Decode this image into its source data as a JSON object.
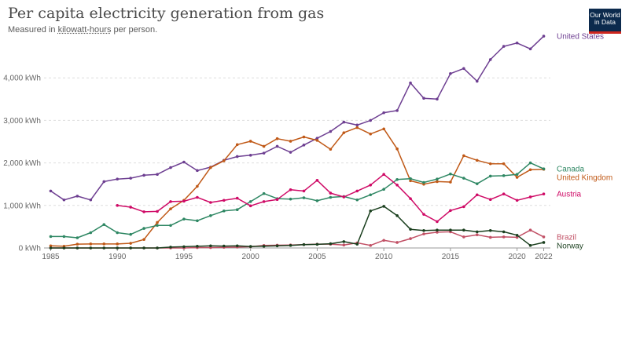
{
  "header": {
    "title": "Per capita electricity generation from gas",
    "subtitle_prefix": "Measured in ",
    "subtitle_link": "kilowatt-hours",
    "subtitle_suffix": " per person."
  },
  "logo": {
    "line1": "Our World",
    "line2": "in Data"
  },
  "chart_data": {
    "type": "line",
    "title": "Per capita electricity generation from gas",
    "ylabel": "",
    "xlim": [
      1984.5,
      2022.5
    ],
    "ylim": [
      0,
      5000
    ],
    "grid": true,
    "legend": "right (labels at line ends)",
    "x_ticks": [
      {
        "value": 1985,
        "label": "1985"
      },
      {
        "value": 1990,
        "label": "1990"
      },
      {
        "value": 1995,
        "label": "1995"
      },
      {
        "value": 2000,
        "label": "2000"
      },
      {
        "value": 2005,
        "label": "2005"
      },
      {
        "value": 2010,
        "label": "2010"
      },
      {
        "value": 2015,
        "label": "2015"
      },
      {
        "value": 2020,
        "label": "2020"
      },
      {
        "value": 2022,
        "label": "2022"
      }
    ],
    "y_ticks": [
      {
        "value": 0,
        "label": "0 kWh"
      },
      {
        "value": 1000,
        "label": "1,000 kWh"
      },
      {
        "value": 2000,
        "label": "2,000 kWh"
      },
      {
        "value": 3000,
        "label": "3,000 kWh"
      },
      {
        "value": 4000,
        "label": "4,000 kWh"
      }
    ],
    "series": [
      {
        "name": "United States",
        "color": "#6d3e91",
        "x": [
          1985,
          1986,
          1987,
          1988,
          1989,
          1990,
          1991,
          1992,
          1993,
          1994,
          1995,
          1996,
          1997,
          1998,
          1999,
          2000,
          2001,
          2002,
          2003,
          2004,
          2005,
          2006,
          2007,
          2008,
          2009,
          2010,
          2011,
          2012,
          2013,
          2014,
          2015,
          2016,
          2017,
          2018,
          2019,
          2020,
          2021,
          2022
        ],
        "values": [
          1340,
          1130,
          1220,
          1130,
          1560,
          1620,
          1640,
          1710,
          1730,
          1890,
          2020,
          1820,
          1900,
          2060,
          2150,
          2180,
          2230,
          2390,
          2250,
          2420,
          2580,
          2740,
          2960,
          2890,
          3000,
          3180,
          3230,
          3880,
          3520,
          3500,
          4100,
          4220,
          3920,
          4430,
          4740,
          4820,
          4680,
          4980
        ]
      },
      {
        "name": "United Kingdom",
        "color": "#c05917",
        "x": [
          1985,
          1986,
          1987,
          1988,
          1989,
          1990,
          1991,
          1992,
          1993,
          1994,
          1995,
          1996,
          1997,
          1998,
          1999,
          2000,
          2001,
          2002,
          2003,
          2004,
          2005,
          2006,
          2007,
          2008,
          2009,
          2010,
          2011,
          2012,
          2013,
          2014,
          2015,
          2016,
          2017,
          2018,
          2019,
          2020,
          2021,
          2022
        ],
        "values": [
          50,
          40,
          90,
          95,
          95,
          95,
          110,
          200,
          600,
          920,
          1120,
          1450,
          1890,
          2050,
          2430,
          2510,
          2390,
          2570,
          2510,
          2610,
          2530,
          2320,
          2710,
          2830,
          2680,
          2800,
          2330,
          1580,
          1500,
          1560,
          1550,
          2170,
          2060,
          1980,
          1980,
          1660,
          1840,
          1850
        ]
      },
      {
        "name": "Canada",
        "color": "#2e8763",
        "x": [
          1985,
          1986,
          1987,
          1988,
          1989,
          1990,
          1991,
          1992,
          1993,
          1994,
          1995,
          1996,
          1997,
          1998,
          1999,
          2000,
          2001,
          2002,
          2003,
          2004,
          2005,
          2006,
          2007,
          2008,
          2009,
          2010,
          2011,
          2012,
          2013,
          2014,
          2015,
          2016,
          2017,
          2018,
          2019,
          2020,
          2021,
          2022
        ],
        "values": [
          270,
          270,
          240,
          360,
          550,
          360,
          320,
          460,
          530,
          530,
          680,
          640,
          760,
          870,
          900,
          1090,
          1280,
          1160,
          1150,
          1180,
          1110,
          1190,
          1210,
          1130,
          1250,
          1380,
          1610,
          1630,
          1540,
          1620,
          1740,
          1640,
          1510,
          1690,
          1700,
          1730,
          2000,
          1860
        ]
      },
      {
        "name": "Austria",
        "color": "#cf0a66",
        "x": [
          1990,
          1991,
          1992,
          1993,
          1994,
          1995,
          1996,
          1997,
          1998,
          1999,
          2000,
          2001,
          2002,
          2003,
          2004,
          2005,
          2006,
          2007,
          2008,
          2009,
          2010,
          2011,
          2012,
          2013,
          2014,
          2015,
          2016,
          2017,
          2018,
          2019,
          2020,
          2021,
          2022
        ],
        "values": [
          1000,
          960,
          850,
          860,
          1090,
          1100,
          1190,
          1070,
          1120,
          1170,
          990,
          1090,
          1140,
          1370,
          1340,
          1590,
          1290,
          1200,
          1340,
          1480,
          1730,
          1480,
          1160,
          790,
          620,
          880,
          970,
          1250,
          1140,
          1270,
          1120,
          1200,
          1270
        ]
      },
      {
        "name": "Brazil",
        "color": "#c15065",
        "x": [
          1985,
          1986,
          1987,
          1988,
          1989,
          1990,
          1991,
          1992,
          1993,
          1994,
          1995,
          1996,
          1997,
          1998,
          1999,
          2000,
          2001,
          2002,
          2003,
          2004,
          2005,
          2006,
          2007,
          2008,
          2009,
          2010,
          2011,
          2012,
          2013,
          2014,
          2015,
          2016,
          2017,
          2018,
          2019,
          2020,
          2021,
          2022
        ],
        "values": [
          0,
          0,
          0,
          0,
          0,
          0,
          0,
          0,
          0,
          0,
          0,
          10,
          10,
          15,
          20,
          30,
          60,
          65,
          70,
          80,
          90,
          90,
          70,
          120,
          60,
          180,
          130,
          220,
          330,
          370,
          380,
          260,
          310,
          250,
          260,
          250,
          420,
          260
        ]
      },
      {
        "name": "Norway",
        "color": "#1a3f1e",
        "x": [
          1985,
          1986,
          1987,
          1988,
          1989,
          1990,
          1991,
          1992,
          1993,
          1994,
          1995,
          1996,
          1997,
          1998,
          1999,
          2000,
          2001,
          2002,
          2003,
          2004,
          2005,
          2006,
          2007,
          2008,
          2009,
          2010,
          2011,
          2012,
          2013,
          2014,
          2015,
          2016,
          2017,
          2018,
          2019,
          2020,
          2021,
          2022
        ],
        "values": [
          0,
          0,
          0,
          0,
          0,
          0,
          0,
          0,
          0,
          20,
          30,
          40,
          50,
          45,
          50,
          35,
          40,
          50,
          60,
          80,
          85,
          100,
          150,
          90,
          870,
          980,
          760,
          440,
          410,
          420,
          420,
          420,
          380,
          410,
          380,
          300,
          60,
          130
        ]
      }
    ]
  }
}
